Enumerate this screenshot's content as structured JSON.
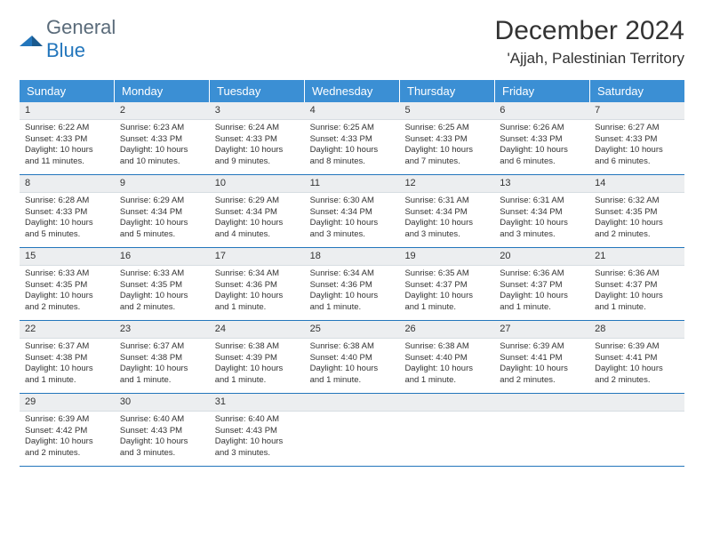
{
  "logo": {
    "word1": "General",
    "word2": "Blue"
  },
  "title": "December 2024",
  "location": "'Ajjah, Palestinian Territory",
  "colors": {
    "header_bg": "#3b8fd4",
    "header_text": "#ffffff",
    "daynum_bg": "#eceef0",
    "border": "#2376bc",
    "logo_gray": "#5a6b7a",
    "logo_blue": "#2376bc"
  },
  "daynames": [
    "Sunday",
    "Monday",
    "Tuesday",
    "Wednesday",
    "Thursday",
    "Friday",
    "Saturday"
  ],
  "weeks": [
    [
      {
        "n": "1",
        "sr": "Sunrise: 6:22 AM",
        "ss": "Sunset: 4:33 PM",
        "dl1": "Daylight: 10 hours",
        "dl2": "and 11 minutes."
      },
      {
        "n": "2",
        "sr": "Sunrise: 6:23 AM",
        "ss": "Sunset: 4:33 PM",
        "dl1": "Daylight: 10 hours",
        "dl2": "and 10 minutes."
      },
      {
        "n": "3",
        "sr": "Sunrise: 6:24 AM",
        "ss": "Sunset: 4:33 PM",
        "dl1": "Daylight: 10 hours",
        "dl2": "and 9 minutes."
      },
      {
        "n": "4",
        "sr": "Sunrise: 6:25 AM",
        "ss": "Sunset: 4:33 PM",
        "dl1": "Daylight: 10 hours",
        "dl2": "and 8 minutes."
      },
      {
        "n": "5",
        "sr": "Sunrise: 6:25 AM",
        "ss": "Sunset: 4:33 PM",
        "dl1": "Daylight: 10 hours",
        "dl2": "and 7 minutes."
      },
      {
        "n": "6",
        "sr": "Sunrise: 6:26 AM",
        "ss": "Sunset: 4:33 PM",
        "dl1": "Daylight: 10 hours",
        "dl2": "and 6 minutes."
      },
      {
        "n": "7",
        "sr": "Sunrise: 6:27 AM",
        "ss": "Sunset: 4:33 PM",
        "dl1": "Daylight: 10 hours",
        "dl2": "and 6 minutes."
      }
    ],
    [
      {
        "n": "8",
        "sr": "Sunrise: 6:28 AM",
        "ss": "Sunset: 4:33 PM",
        "dl1": "Daylight: 10 hours",
        "dl2": "and 5 minutes."
      },
      {
        "n": "9",
        "sr": "Sunrise: 6:29 AM",
        "ss": "Sunset: 4:34 PM",
        "dl1": "Daylight: 10 hours",
        "dl2": "and 5 minutes."
      },
      {
        "n": "10",
        "sr": "Sunrise: 6:29 AM",
        "ss": "Sunset: 4:34 PM",
        "dl1": "Daylight: 10 hours",
        "dl2": "and 4 minutes."
      },
      {
        "n": "11",
        "sr": "Sunrise: 6:30 AM",
        "ss": "Sunset: 4:34 PM",
        "dl1": "Daylight: 10 hours",
        "dl2": "and 3 minutes."
      },
      {
        "n": "12",
        "sr": "Sunrise: 6:31 AM",
        "ss": "Sunset: 4:34 PM",
        "dl1": "Daylight: 10 hours",
        "dl2": "and 3 minutes."
      },
      {
        "n": "13",
        "sr": "Sunrise: 6:31 AM",
        "ss": "Sunset: 4:34 PM",
        "dl1": "Daylight: 10 hours",
        "dl2": "and 3 minutes."
      },
      {
        "n": "14",
        "sr": "Sunrise: 6:32 AM",
        "ss": "Sunset: 4:35 PM",
        "dl1": "Daylight: 10 hours",
        "dl2": "and 2 minutes."
      }
    ],
    [
      {
        "n": "15",
        "sr": "Sunrise: 6:33 AM",
        "ss": "Sunset: 4:35 PM",
        "dl1": "Daylight: 10 hours",
        "dl2": "and 2 minutes."
      },
      {
        "n": "16",
        "sr": "Sunrise: 6:33 AM",
        "ss": "Sunset: 4:35 PM",
        "dl1": "Daylight: 10 hours",
        "dl2": "and 2 minutes."
      },
      {
        "n": "17",
        "sr": "Sunrise: 6:34 AM",
        "ss": "Sunset: 4:36 PM",
        "dl1": "Daylight: 10 hours",
        "dl2": "and 1 minute."
      },
      {
        "n": "18",
        "sr": "Sunrise: 6:34 AM",
        "ss": "Sunset: 4:36 PM",
        "dl1": "Daylight: 10 hours",
        "dl2": "and 1 minute."
      },
      {
        "n": "19",
        "sr": "Sunrise: 6:35 AM",
        "ss": "Sunset: 4:37 PM",
        "dl1": "Daylight: 10 hours",
        "dl2": "and 1 minute."
      },
      {
        "n": "20",
        "sr": "Sunrise: 6:36 AM",
        "ss": "Sunset: 4:37 PM",
        "dl1": "Daylight: 10 hours",
        "dl2": "and 1 minute."
      },
      {
        "n": "21",
        "sr": "Sunrise: 6:36 AM",
        "ss": "Sunset: 4:37 PM",
        "dl1": "Daylight: 10 hours",
        "dl2": "and 1 minute."
      }
    ],
    [
      {
        "n": "22",
        "sr": "Sunrise: 6:37 AM",
        "ss": "Sunset: 4:38 PM",
        "dl1": "Daylight: 10 hours",
        "dl2": "and 1 minute."
      },
      {
        "n": "23",
        "sr": "Sunrise: 6:37 AM",
        "ss": "Sunset: 4:38 PM",
        "dl1": "Daylight: 10 hours",
        "dl2": "and 1 minute."
      },
      {
        "n": "24",
        "sr": "Sunrise: 6:38 AM",
        "ss": "Sunset: 4:39 PM",
        "dl1": "Daylight: 10 hours",
        "dl2": "and 1 minute."
      },
      {
        "n": "25",
        "sr": "Sunrise: 6:38 AM",
        "ss": "Sunset: 4:40 PM",
        "dl1": "Daylight: 10 hours",
        "dl2": "and 1 minute."
      },
      {
        "n": "26",
        "sr": "Sunrise: 6:38 AM",
        "ss": "Sunset: 4:40 PM",
        "dl1": "Daylight: 10 hours",
        "dl2": "and 1 minute."
      },
      {
        "n": "27",
        "sr": "Sunrise: 6:39 AM",
        "ss": "Sunset: 4:41 PM",
        "dl1": "Daylight: 10 hours",
        "dl2": "and 2 minutes."
      },
      {
        "n": "28",
        "sr": "Sunrise: 6:39 AM",
        "ss": "Sunset: 4:41 PM",
        "dl1": "Daylight: 10 hours",
        "dl2": "and 2 minutes."
      }
    ],
    [
      {
        "n": "29",
        "sr": "Sunrise: 6:39 AM",
        "ss": "Sunset: 4:42 PM",
        "dl1": "Daylight: 10 hours",
        "dl2": "and 2 minutes."
      },
      {
        "n": "30",
        "sr": "Sunrise: 6:40 AM",
        "ss": "Sunset: 4:43 PM",
        "dl1": "Daylight: 10 hours",
        "dl2": "and 3 minutes."
      },
      {
        "n": "31",
        "sr": "Sunrise: 6:40 AM",
        "ss": "Sunset: 4:43 PM",
        "dl1": "Daylight: 10 hours",
        "dl2": "and 3 minutes."
      },
      {
        "empty": true
      },
      {
        "empty": true
      },
      {
        "empty": true
      },
      {
        "empty": true
      }
    ]
  ]
}
